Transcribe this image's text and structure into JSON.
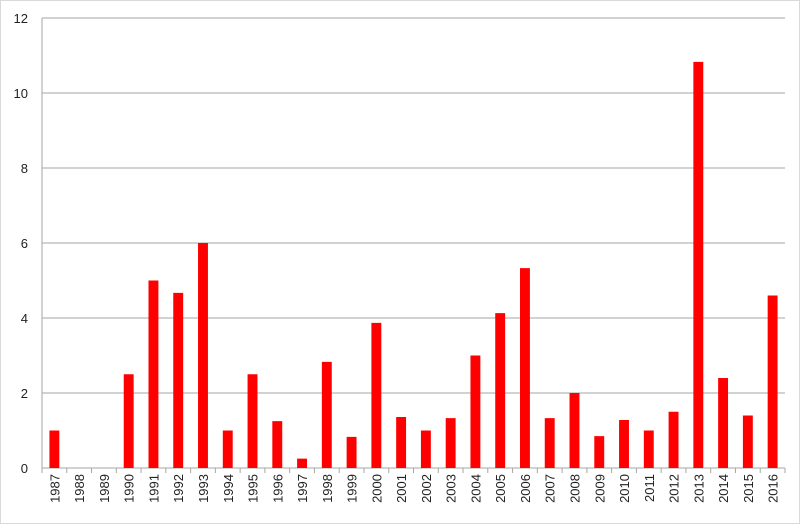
{
  "chart_data": {
    "type": "bar",
    "categories": [
      "1987",
      "1988",
      "1989",
      "1990",
      "1991",
      "1992",
      "1993",
      "1994",
      "1995",
      "1996",
      "1997",
      "1998",
      "1999",
      "2000",
      "2001",
      "2002",
      "2003",
      "2004",
      "2005",
      "2006",
      "2007",
      "2008",
      "2009",
      "2010",
      "2011",
      "2012",
      "2013",
      "2014",
      "2015",
      "2016"
    ],
    "values": [
      1,
      0,
      0,
      2.5,
      5,
      4.67,
      6,
      1,
      2.5,
      1.25,
      0.25,
      2.83,
      0.83,
      3.87,
      1.36,
      1,
      1.33,
      3,
      4.13,
      5.33,
      1.33,
      2,
      0.85,
      1.28,
      1,
      1.5,
      10.83,
      2.4,
      1.4,
      4.6
    ],
    "color": "#ff0000",
    "ylim": [
      0,
      12
    ],
    "yticks": [
      0,
      2,
      4,
      6,
      8,
      10,
      12
    ],
    "grid": true
  }
}
